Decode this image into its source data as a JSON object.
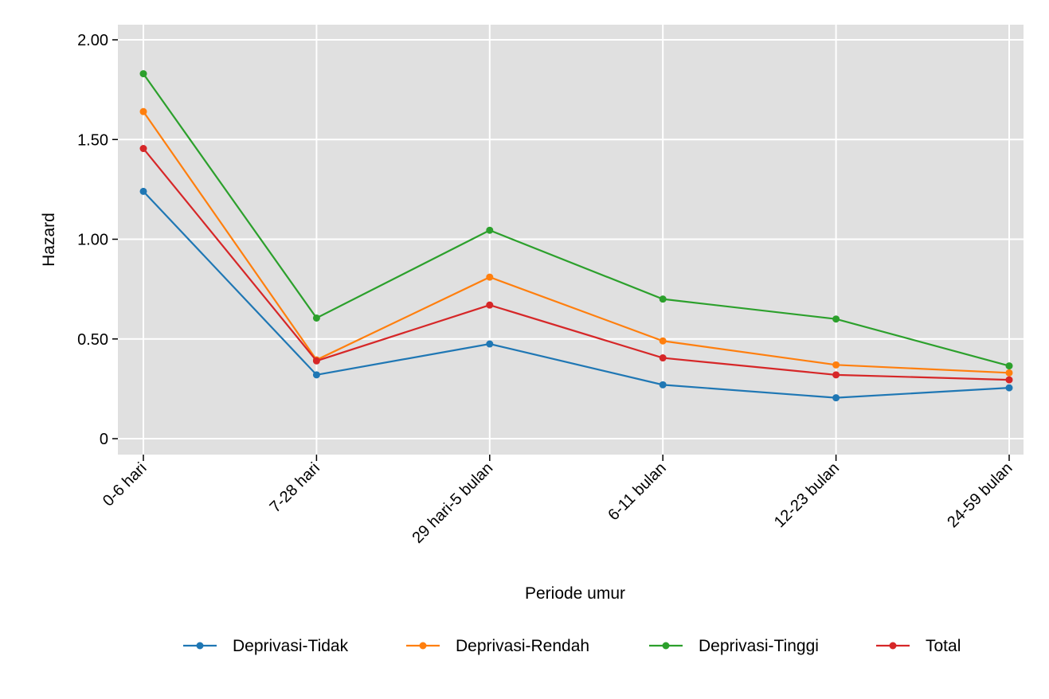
{
  "chart_data": {
    "type": "line",
    "categories": [
      "0-6 hari",
      "7-28 hari",
      "29 hari-5 bulan",
      "6-11 bulan",
      "12-23 bulan",
      "24-59 bulan"
    ],
    "xlabel": "Periode umur",
    "ylabel": "Hazard",
    "ylim": [
      -0.07,
      2.08
    ],
    "yticks": [
      0,
      0.5,
      1.0,
      1.5,
      2.0
    ],
    "ytick_labels": [
      "0",
      "0.50",
      "1.00",
      "1.50",
      "2.00"
    ],
    "grid": true,
    "legend_position": "bottom",
    "series": [
      {
        "name": "Deprivasi-Tidak",
        "color": "#1f77b4",
        "values": [
          1.24,
          0.32,
          0.475,
          0.27,
          0.205,
          0.255
        ]
      },
      {
        "name": "Deprivasi-Rendah",
        "color": "#ff7f0e",
        "values": [
          1.64,
          0.395,
          0.81,
          0.49,
          0.37,
          0.33
        ]
      },
      {
        "name": "Deprivasi-Tinggi",
        "color": "#2ca02c",
        "values": [
          1.83,
          0.605,
          1.045,
          0.7,
          0.6,
          0.365
        ]
      },
      {
        "name": "Total",
        "color": "#d62728",
        "values": [
          1.455,
          0.39,
          0.67,
          0.405,
          0.32,
          0.295
        ]
      }
    ]
  }
}
